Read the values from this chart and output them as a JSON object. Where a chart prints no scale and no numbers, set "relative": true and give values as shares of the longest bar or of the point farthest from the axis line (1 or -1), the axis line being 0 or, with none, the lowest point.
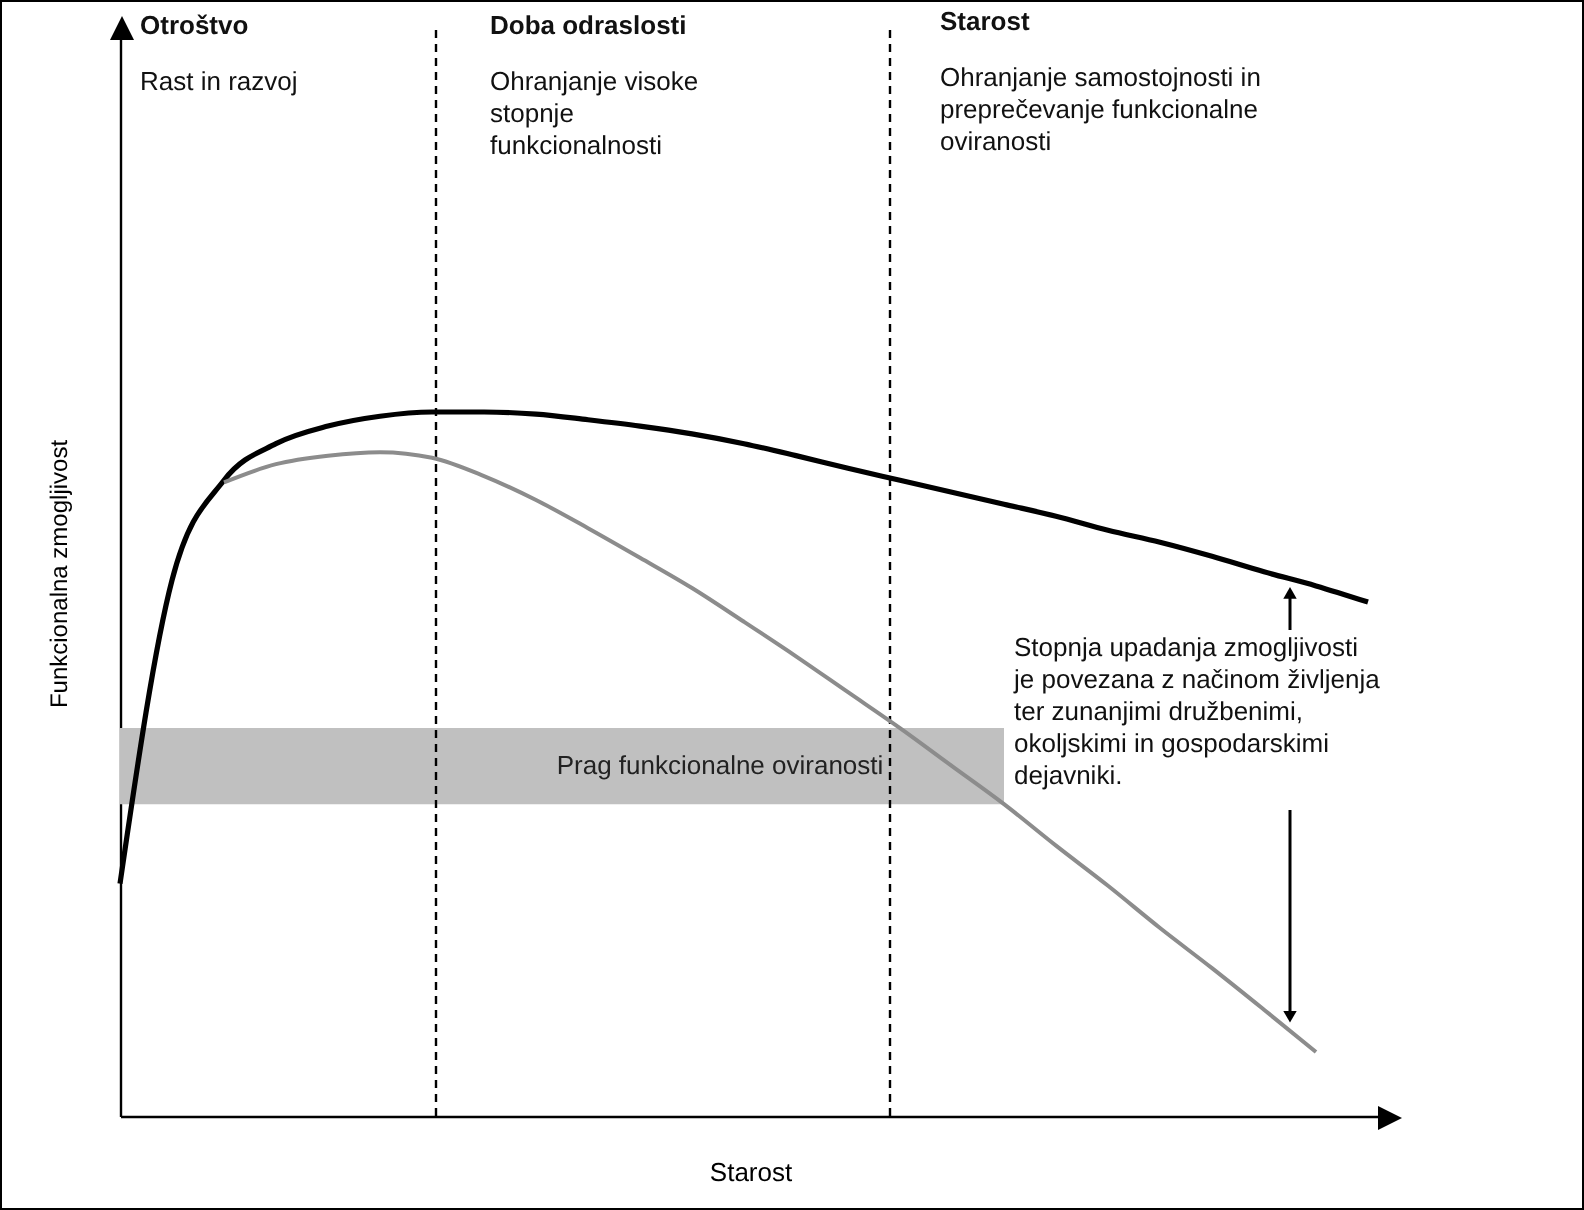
{
  "chart_data": {
    "type": "line",
    "relative": true,
    "xlabel": "Starost",
    "ylabel": "Funkcionalna zmogljivost",
    "categories": [
      null,
      null,
      null,
      null,
      null,
      null,
      null,
      null,
      null,
      null,
      null,
      null,
      null,
      null,
      null,
      null,
      null,
      null,
      null,
      null,
      null,
      null,
      null,
      null,
      null
    ],
    "series": [
      {
        "color": "#000000",
        "values": [
          0.33,
          0.761,
          0.903,
          0.955,
          0.98,
          0.994,
          1,
          1,
          0.997,
          0.989,
          0.98,
          0.969,
          0.955,
          0.938,
          0.92,
          0.903,
          0.886,
          0.869,
          0.852,
          0.832,
          0.815,
          0.795,
          0.773,
          0.753,
          0.73
        ]
      },
      {
        "color": "#8c8c8c",
        "values": [
          null,
          null,
          0.9,
          0.926,
          0.938,
          0.943,
          0.935,
          0.909,
          0.875,
          0.835,
          0.793,
          0.75,
          0.702,
          0.653,
          0.602,
          0.551,
          0.497,
          0.443,
          0.384,
          0.327,
          0.267,
          0.21,
          0.151,
          0.091,
          null
        ]
      }
    ],
    "bands": [
      {
        "axis": "y",
        "from": 0.443,
        "to": 0.551,
        "label": "Prag funkcionalne oviranosti",
        "color": "#c0c0c0"
      }
    ],
    "annotations": [
      "Otroštvo",
      "Rast in razvoj",
      "Doba odraslosti",
      "Ohranjanje visoke stopnje funkcionalnosti",
      "Starost",
      "Ohranjanje samostojnosti in preprečevanje funkcionalne oviranosti",
      "Stopnja upadanja zmogljivosti je povezana z načinom življenja ter zunanjimi družbenimi, okoljskimi in gospodarskimi dejavniki."
    ]
  }
}
